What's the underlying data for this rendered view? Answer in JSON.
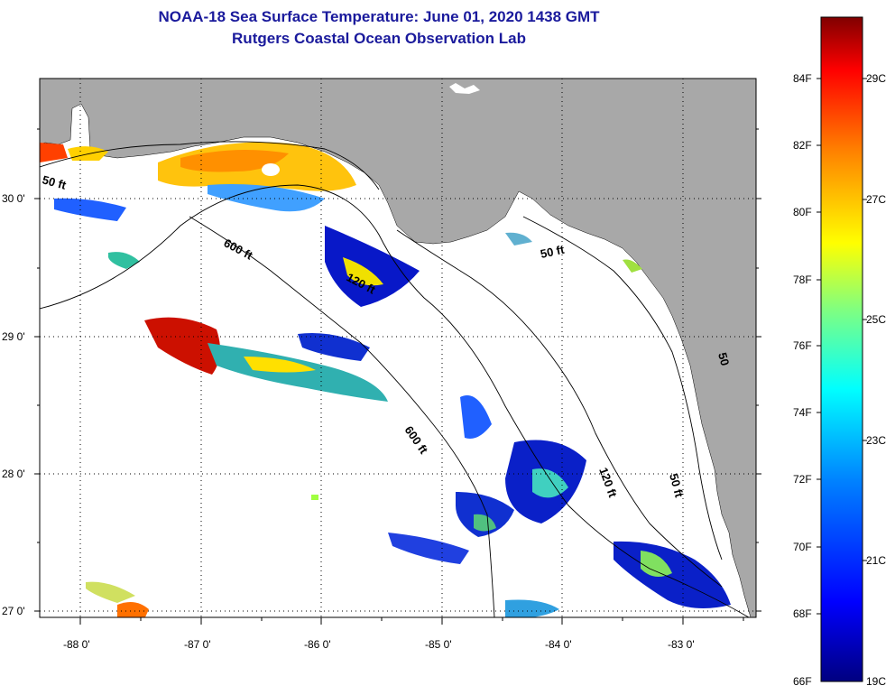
{
  "header": {
    "title_line1": "NOAA-18 Sea Surface Temperature:  June 01, 2020 1438 GMT",
    "title_line2": "Rutgers Coastal Ocean Observation Lab"
  },
  "map": {
    "lat_labels": [
      "30 0'",
      "29 0'",
      "28 0'",
      "27 0'"
    ],
    "lon_labels": [
      "-88 0'",
      "-87 0'",
      "-86 0'",
      "-85 0'",
      "-84 0'",
      "-83 0'"
    ],
    "contour_labels": [
      "50 ft",
      "600 ft",
      "120 ft",
      "50 ft",
      "600 ft",
      "120 ft",
      "50 ft",
      "50"
    ],
    "colors": {
      "land": "#a8a8a8",
      "water_nodata": "#ffffff",
      "title": "#1a1a9c"
    }
  },
  "colorbar": {
    "fahrenheit_labels": [
      "84F",
      "82F",
      "80F",
      "78F",
      "76F",
      "74F",
      "72F",
      "70F",
      "68F",
      "66F"
    ],
    "celsius_labels": [
      "29C",
      "27C",
      "25C",
      "23C",
      "21C",
      "19C"
    ],
    "range_f": [
      66,
      86
    ],
    "gradient": [
      "#000080",
      "#0000ff",
      "#0080ff",
      "#00ffff",
      "#80ff80",
      "#ffff00",
      "#ff8000",
      "#ff0000",
      "#800000"
    ]
  }
}
